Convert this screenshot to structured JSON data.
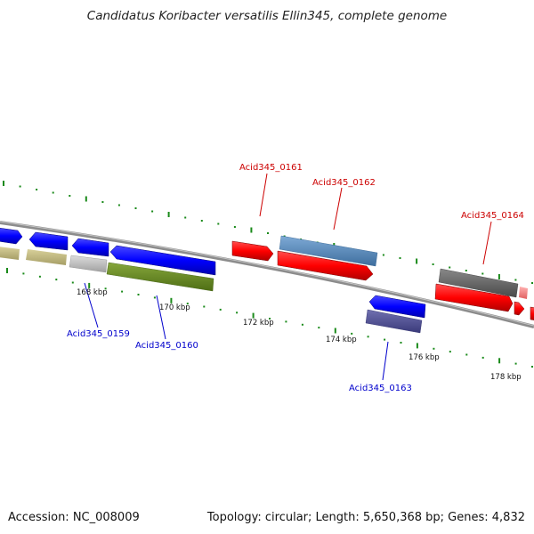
{
  "title": "Candidatus Koribacter versatilis Ellin345, complete genome",
  "footer": {
    "accession": "Accession: NC_008009",
    "stats": "Topology: circular; Length: 5,650,368 bp; Genes: 4,832"
  },
  "scale_labels": [
    "168 kbp",
    "170 kbp",
    "172 kbp",
    "174 kbp",
    "176 kbp",
    "178 kbp"
  ],
  "gene_labels": [
    {
      "text": "Acid345_0159",
      "color": "#0000cc"
    },
    {
      "text": "Acid345_0160",
      "color": "#0000cc"
    },
    {
      "text": "Acid345_0161",
      "color": "#cc0000"
    },
    {
      "text": "Acid345_0162",
      "color": "#cc0000"
    },
    {
      "text": "Acid345_0163",
      "color": "#0000cc"
    },
    {
      "text": "Acid345_0164",
      "color": "#cc0000"
    }
  ],
  "colors": {
    "backbone": "#8c8c8c",
    "tick": "#1a8a1a",
    "reverse_gene": "#0000ff",
    "forward_gene": "#ff0000"
  }
}
